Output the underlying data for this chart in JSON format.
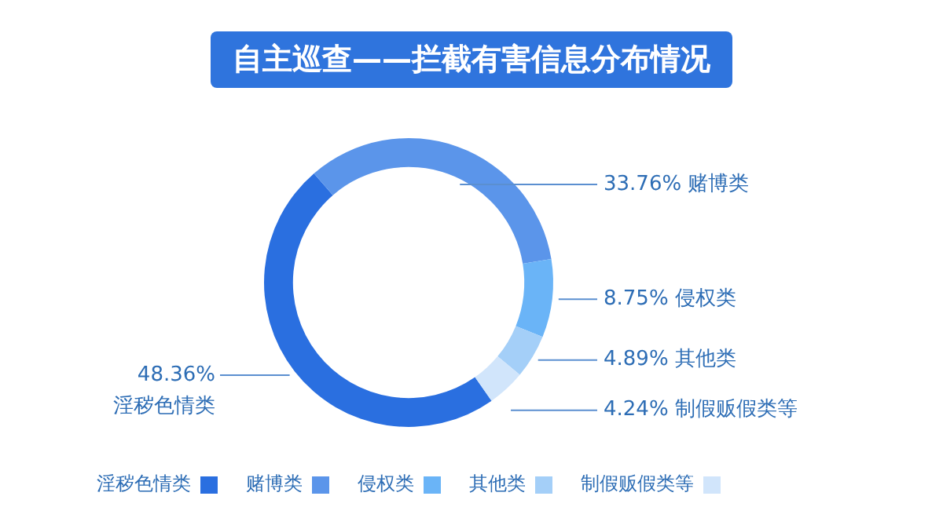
{
  "chart_data": {
    "type": "donut",
    "title": "自主巡查——拦截有害信息分布情况",
    "categories": [
      "淫秽色情类",
      "赌博类",
      "侵权类",
      "其他类",
      "制假贩假类等"
    ],
    "values": [
      48.36,
      33.76,
      8.75,
      4.89,
      4.24
    ],
    "colors": [
      "#2a6fe0",
      "#5b95ea",
      "#6ab4f7",
      "#a4cff8",
      "#d1e5fb"
    ],
    "value_labels": [
      "48.36%",
      "33.76%",
      "8.75%",
      "4.89%",
      "4.24%"
    ],
    "legend": "bottom"
  }
}
